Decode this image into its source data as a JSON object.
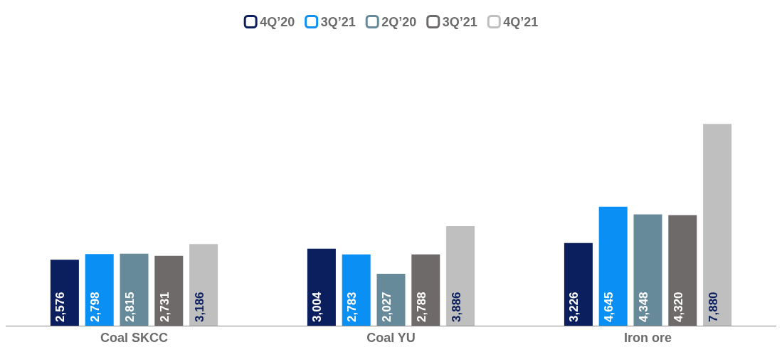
{
  "chart_data": {
    "type": "bar",
    "categories": [
      "Coal SKCC",
      "Coal YU",
      "Iron ore"
    ],
    "series": [
      {
        "name": "4Q’20",
        "color": "#0b1f5e",
        "values": [
          2576,
          3004,
          3226
        ],
        "value_labels": [
          "2,576",
          "3,004",
          "3,226"
        ]
      },
      {
        "name": "3Q’21",
        "color": "#0a8ff5",
        "values": [
          2798,
          2783,
          4645
        ],
        "value_labels": [
          "2,798",
          "2,783",
          "4,645"
        ]
      },
      {
        "name": "2Q’20",
        "color": "#668a99",
        "values": [
          2815,
          2027,
          4348
        ],
        "value_labels": [
          "2,815",
          "2,027",
          "4,348"
        ]
      },
      {
        "name": "3Q’21",
        "color": "#6e6a69",
        "values": [
          2731,
          2788,
          4320
        ],
        "value_labels": [
          "2,731",
          "2,788",
          "4,320"
        ]
      },
      {
        "name": "4Q’21",
        "color": "#bfbfbf",
        "values": [
          3186,
          3886,
          7880
        ],
        "value_labels": [
          "3,186",
          "3,886",
          "7,880"
        ]
      }
    ],
    "legend": "top",
    "grid": false
  }
}
